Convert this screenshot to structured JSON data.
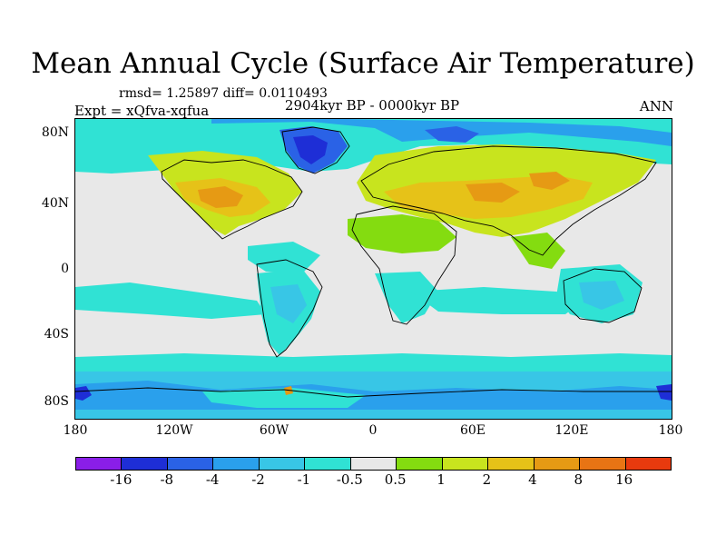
{
  "title": "Mean Annual Cycle (Surface Air Temperature)",
  "stats": "rmsd= 1.25897 diff= 0.0110493",
  "experiment": "Expt = xQfva-xqfua",
  "period": "2904kyr BP - 0000kyr BP",
  "season": "ANN",
  "lat_labels": [
    "80N",
    "40N",
    "0",
    "40S",
    "80S"
  ],
  "lon_labels": [
    "180",
    "120W",
    "60W",
    "0",
    "60E",
    "120E",
    "180"
  ],
  "colorbar": {
    "colors": [
      "#8a1ee8",
      "#1e2ed6",
      "#2a62e6",
      "#2aa0ec",
      "#38c6e6",
      "#30e2d4",
      "#e8e8e8",
      "#84dc10",
      "#c8e41e",
      "#e6c218",
      "#e69a14",
      "#e87414",
      "#e83a0e"
    ],
    "labels": [
      "-16",
      "-8",
      "-4",
      "-2",
      "-1",
      "-0.5",
      "0.5",
      "1",
      "2",
      "4",
      "8",
      "16"
    ]
  }
}
